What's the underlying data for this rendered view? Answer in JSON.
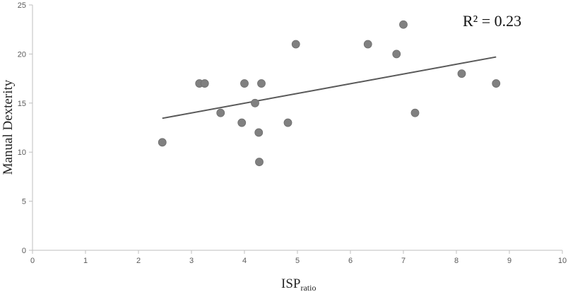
{
  "chart_data": {
    "type": "scatter",
    "title": "",
    "xlabel": "ISP",
    "xlabel_subscript": "ratio",
    "ylabel": "Manual Dexterity",
    "xlim": [
      0,
      10
    ],
    "ylim": [
      0,
      25
    ],
    "x_ticks": [
      "0",
      "1",
      "2",
      "3",
      "4",
      "5",
      "6",
      "7",
      "8",
      "9",
      "10"
    ],
    "y_ticks": [
      "0",
      "5",
      "10",
      "15",
      "20",
      "25"
    ],
    "grid": false,
    "points": [
      {
        "x": 2.45,
        "y": 11
      },
      {
        "x": 3.15,
        "y": 17
      },
      {
        "x": 3.25,
        "y": 17
      },
      {
        "x": 3.55,
        "y": 14
      },
      {
        "x": 3.95,
        "y": 13
      },
      {
        "x": 4.0,
        "y": 17
      },
      {
        "x": 4.2,
        "y": 15
      },
      {
        "x": 4.27,
        "y": 12
      },
      {
        "x": 4.28,
        "y": 9
      },
      {
        "x": 4.32,
        "y": 17
      },
      {
        "x": 4.82,
        "y": 13
      },
      {
        "x": 4.97,
        "y": 21
      },
      {
        "x": 6.33,
        "y": 21
      },
      {
        "x": 6.87,
        "y": 20
      },
      {
        "x": 7.0,
        "y": 23
      },
      {
        "x": 7.22,
        "y": 14
      },
      {
        "x": 8.1,
        "y": 18
      },
      {
        "x": 8.75,
        "y": 17
      }
    ],
    "trendline": {
      "x": [
        2.45,
        8.75
      ],
      "y": [
        13.45,
        19.7
      ]
    },
    "annotation": "R² = 0.23",
    "colors": {
      "marker": "#808080",
      "trendline": "#595959",
      "axis": "#bfbfbf"
    }
  }
}
